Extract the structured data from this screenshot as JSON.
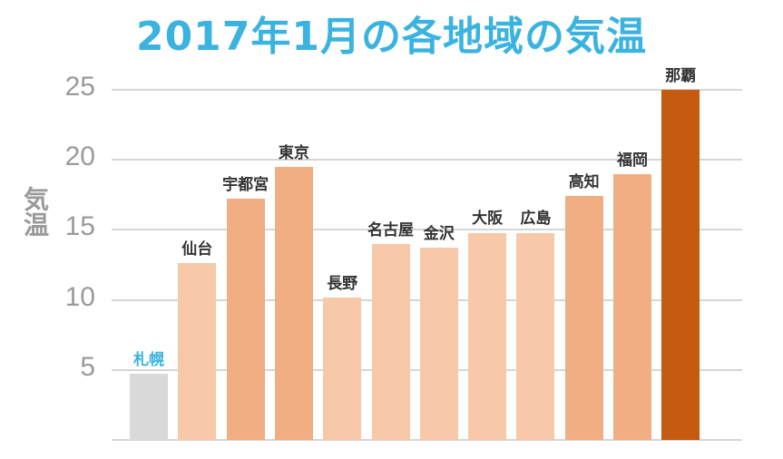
{
  "chart_data": {
    "type": "bar",
    "title": "2017年1月の各地域の気温",
    "xlabel": "",
    "ylabel": "気温",
    "ylim": [
      0,
      25
    ],
    "yticks": [
      5,
      10,
      15,
      20,
      25
    ],
    "grid": true,
    "legend": null,
    "categories": [
      "札幌",
      "仙台",
      "宇都宮",
      "東京",
      "長野",
      "名古屋",
      "金沢",
      "大阪",
      "広島",
      "高知",
      "福岡",
      "那覇"
    ],
    "values": [
      4.7,
      12.6,
      17.2,
      19.5,
      10.2,
      14.0,
      13.7,
      14.8,
      14.8,
      17.4,
      19.0,
      25.0
    ],
    "bar_colors": [
      "#d9d9d9",
      "#f7c9a9",
      "#f0ae82",
      "#f0ae82",
      "#f7c9a9",
      "#f7c9a9",
      "#f7c9a9",
      "#f7c9a9",
      "#f7c9a9",
      "#f0ae82",
      "#f0ae82",
      "#c55a11"
    ],
    "label_colors": [
      "#3bb3e0",
      "#333333",
      "#333333",
      "#333333",
      "#333333",
      "#333333",
      "#333333",
      "#333333",
      "#333333",
      "#333333",
      "#333333",
      "#333333"
    ]
  },
  "colors": {
    "title": "#3bb3e0",
    "axis_text": "#9a9a9a",
    "grid": "#d6d6d6"
  }
}
